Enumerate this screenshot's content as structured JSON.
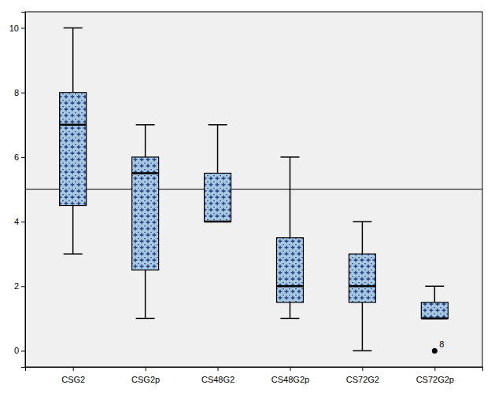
{
  "chart_data": {
    "type": "box",
    "categories": [
      "CSG2",
      "CSG2p",
      "CS48G2",
      "CS48G2p",
      "CS72G2",
      "CS72G2p"
    ],
    "boxes": [
      {
        "min": 3,
        "q1": 4.5,
        "median": 7,
        "q3": 8,
        "max": 10,
        "outliers": []
      },
      {
        "min": 1,
        "q1": 2.5,
        "median": 5.5,
        "q3": 6,
        "max": 7,
        "outliers": []
      },
      {
        "min": 4,
        "q1": 4,
        "median": 4,
        "q3": 5.5,
        "max": 7,
        "outliers": []
      },
      {
        "min": 1,
        "q1": 1.5,
        "median": 2,
        "q3": 3.5,
        "max": 6,
        "outliers": []
      },
      {
        "min": 0,
        "q1": 1.5,
        "median": 2,
        "q3": 3,
        "max": 4,
        "outliers": []
      },
      {
        "min": 1,
        "q1": 1,
        "median": 1,
        "q3": 1.5,
        "max": 2,
        "outliers": [
          {
            "value": 0,
            "label": "8"
          }
        ]
      }
    ],
    "reference_line": 5,
    "color": "#a9c8e6",
    "ylim": [
      -0.5,
      10.5
    ],
    "yticks": [
      0,
      2,
      4,
      6,
      8,
      10
    ],
    "grid": false
  }
}
